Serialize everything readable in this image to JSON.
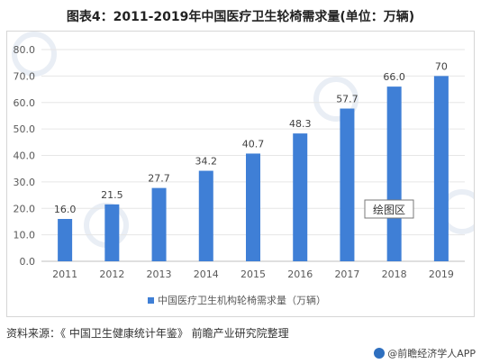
{
  "header": {
    "title": "图表4：2011-2019年中国医疗卫生轮椅需求量(单位：万辆)"
  },
  "plot_area_label": "绘图区",
  "footer": {
    "source": "资料来源：《 中国卫生健康统计年鉴》 前瞻产业研究院整理",
    "brand": "@前瞻经济学人APP"
  },
  "colors": {
    "bar": "#3f7fd6",
    "axis_text": "#595959",
    "grid": "#e6e6e6"
  },
  "chart_data": {
    "type": "bar",
    "categories": [
      "2011",
      "2012",
      "2013",
      "2014",
      "2015",
      "2016",
      "2017",
      "2018",
      "2019"
    ],
    "series": [
      {
        "name": "中国医疗卫生机构轮椅需求量（万辆）",
        "values": [
          16.0,
          21.5,
          27.7,
          34.2,
          40.7,
          48.3,
          57.7,
          66.0,
          70
        ],
        "labels": [
          "16.0",
          "21.5",
          "27.7",
          "34.2",
          "40.7",
          "48.3",
          "57.7",
          "66.0",
          "70"
        ]
      }
    ],
    "ylim": [
      0,
      80
    ],
    "yticks": [
      "0.0",
      "10.0",
      "20.0",
      "30.0",
      "40.0",
      "50.0",
      "60.0",
      "70.0",
      "80.0"
    ],
    "grid": true,
    "legend": "bottom"
  }
}
